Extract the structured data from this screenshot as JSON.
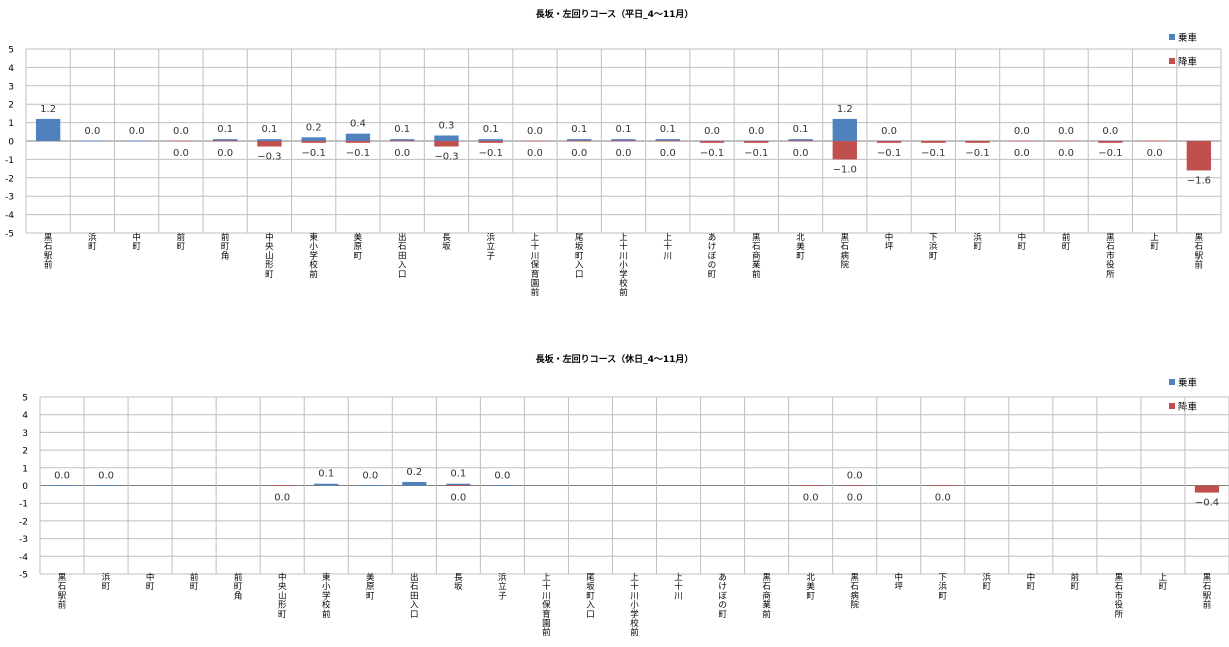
{
  "colors": {
    "boarding": "#4f81bd",
    "alighting": "#c0504d",
    "grid": "#bfbfbf",
    "axis": "#7f7f7f"
  },
  "chart_data": [
    {
      "type": "bar",
      "title": "長坂・左回りコース（平日_4～11月）",
      "ylim": [
        -5,
        5
      ],
      "yticks": [
        5,
        4,
        3,
        2,
        1,
        0,
        -1,
        -2,
        -3,
        -4,
        -5
      ],
      "legend_position": "top-right",
      "grid": true,
      "categories": [
        "黒石駅前",
        "浜町",
        "中町",
        "前町",
        "前町角",
        "中央山形町",
        "東小学校前",
        "美原町",
        "出石田入口",
        "長坂",
        "浜立子",
        "上十川保育園前",
        "尾坂町入口",
        "上十川小学校前",
        "上十川",
        "あけぼの町",
        "黒石商業前",
        "北美町",
        "黒石病院",
        "中坪",
        "下浜町",
        "浜町",
        "中町",
        "前町",
        "黒石市役所",
        "上町",
        "黒石駅前"
      ],
      "series": [
        {
          "name": "乗車",
          "values": [
            1.2,
            0.0,
            0.0,
            0.0,
            0.1,
            0.1,
            0.2,
            0.4,
            0.1,
            0.3,
            0.1,
            0.0,
            0.1,
            0.1,
            0.1,
            0.0,
            0.0,
            0.1,
            1.2,
            0.0,
            null,
            null,
            0.0,
            0.0,
            0.0,
            null,
            null
          ],
          "labels": [
            "1.2",
            "0.0",
            "0.0",
            "0.0",
            "0.1",
            "0.1",
            "0.2",
            "0.4",
            "0.1",
            "0.3",
            "0.1",
            "0.0",
            "0.1",
            "0.1",
            "0.1",
            "0.0",
            "0.0",
            "0.1",
            "1.2",
            "0.0",
            "",
            "",
            "0.0",
            "0.0",
            "0.0",
            "",
            ""
          ]
        },
        {
          "name": "降車",
          "values": [
            null,
            null,
            null,
            0.0,
            0.0,
            -0.3,
            -0.1,
            -0.1,
            0.0,
            -0.3,
            -0.1,
            0.0,
            0.0,
            0.0,
            0.0,
            -0.1,
            -0.1,
            0.0,
            -1.0,
            -0.1,
            -0.1,
            -0.1,
            0.0,
            0.0,
            -0.1,
            0.0,
            -1.6
          ],
          "labels": [
            "",
            "",
            "",
            "0.0",
            "0.0",
            "−0.3",
            "−0.1",
            "−0.1",
            "0.0",
            "−0.3",
            "−0.1",
            "0.0",
            "0.0",
            "0.0",
            "0.0",
            "−0.1",
            "−0.1",
            "0.0",
            "−1.0",
            "−0.1",
            "−0.1",
            "−0.1",
            "0.0",
            "0.0",
            "−0.1",
            "0.0",
            "−1.6"
          ]
        }
      ]
    },
    {
      "type": "bar",
      "title": "長坂・左回りコース（休日_4～11月）",
      "ylim": [
        -5,
        5
      ],
      "yticks": [
        5,
        4,
        3,
        2,
        1,
        0,
        -1,
        -2,
        -3,
        -4,
        -5
      ],
      "legend_position": "top-right",
      "grid": true,
      "categories": [
        "黒石駅前",
        "浜町",
        "中町",
        "前町",
        "前町角",
        "中央山形町",
        "東小学校前",
        "美原町",
        "出石田入口",
        "長坂",
        "浜立子",
        "上十川保育園前",
        "尾坂町入口",
        "上十川小学校前",
        "上十川",
        "あけぼの町",
        "黒石商業前",
        "北美町",
        "黒石病院",
        "中坪",
        "下浜町",
        "浜町",
        "中町",
        "前町",
        "黒石市役所",
        "上町",
        "黒石駅前"
      ],
      "series": [
        {
          "name": "乗車",
          "values": [
            0.0,
            0.0,
            null,
            null,
            null,
            null,
            0.1,
            0.0,
            0.2,
            0.1,
            0.0,
            null,
            null,
            null,
            null,
            null,
            null,
            null,
            0.0,
            null,
            null,
            null,
            null,
            null,
            null,
            null,
            null
          ],
          "labels": [
            "0.0",
            "0.0",
            "",
            "",
            "",
            "",
            "0.1",
            "0.0",
            "0.2",
            "0.1",
            "0.0",
            "",
            "",
            "",
            "",
            "",
            "",
            "",
            "0.0",
            "",
            "",
            "",
            "",
            "",
            "",
            "",
            ""
          ]
        },
        {
          "name": "降車",
          "values": [
            null,
            null,
            null,
            null,
            null,
            0.0,
            null,
            null,
            null,
            0.0,
            null,
            null,
            null,
            null,
            null,
            null,
            null,
            0.0,
            0.0,
            null,
            0.0,
            null,
            null,
            null,
            null,
            null,
            -0.4
          ],
          "labels": [
            "",
            "",
            "",
            "",
            "",
            "0.0",
            "",
            "",
            "",
            "0.0",
            "",
            "",
            "",
            "",
            "",
            "",
            "",
            "0.0",
            "0.0",
            "",
            "0.0",
            "",
            "",
            "",
            "",
            "",
            "−0.4"
          ]
        }
      ]
    }
  ]
}
